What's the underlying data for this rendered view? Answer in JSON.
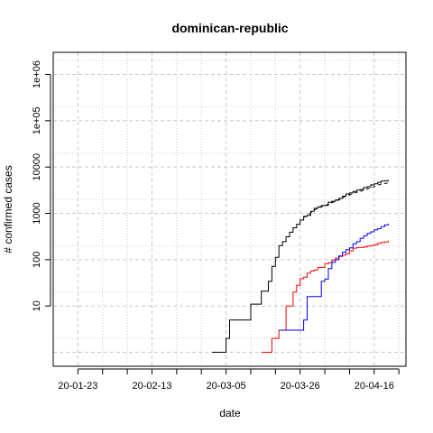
{
  "chart_data": {
    "type": "line",
    "title": "dominican-republic",
    "xlabel": "date",
    "ylabel": "# confirmed cases",
    "x_scale": "date",
    "y_scale": "log",
    "grid": true,
    "ylim": [
      0.5,
      3000000
    ],
    "xlim": [
      "2020-01-16",
      "2020-04-25"
    ],
    "x_tick_labels": [
      "20-01-23",
      "20-02-13",
      "20-03-05",
      "20-03-26",
      "20-04-16"
    ],
    "x_tick_dates": [
      "2020-01-23",
      "2020-02-13",
      "2020-03-05",
      "2020-03-26",
      "2020-04-16"
    ],
    "y_tick_labels": [
      "10",
      "100",
      "1000",
      "10000",
      "1e+05",
      "1e+06"
    ],
    "y_tick_values": [
      10,
      100,
      1000,
      10000,
      100000,
      1000000
    ],
    "series": [
      {
        "color": "#000000",
        "style": "solid",
        "step": true,
        "x": [
          "2020-03-01",
          "2020-03-04",
          "2020-03-05",
          "2020-03-06",
          "2020-03-11",
          "2020-03-12",
          "2020-03-13",
          "2020-03-14",
          "2020-03-15",
          "2020-03-16",
          "2020-03-17",
          "2020-03-18",
          "2020-03-19",
          "2020-03-20",
          "2020-03-21",
          "2020-03-22",
          "2020-03-23",
          "2020-03-24",
          "2020-03-25",
          "2020-03-26",
          "2020-03-27",
          "2020-03-28",
          "2020-03-29",
          "2020-03-30",
          "2020-03-31",
          "2020-04-01",
          "2020-04-02",
          "2020-04-03",
          "2020-04-04",
          "2020-04-05",
          "2020-04-06",
          "2020-04-07",
          "2020-04-08",
          "2020-04-09",
          "2020-04-10",
          "2020-04-11",
          "2020-04-12",
          "2020-04-13",
          "2020-04-14",
          "2020-04-15",
          "2020-04-16",
          "2020-04-17",
          "2020-04-18",
          "2020-04-19",
          "2020-04-20"
        ],
        "y": [
          1,
          1,
          2,
          5,
          5,
          11,
          11,
          11,
          21,
          21,
          34,
          72,
          112,
          200,
          245,
          312,
          392,
          488,
          581,
          719,
          859,
          901,
          1109,
          1284,
          1380,
          1488,
          1488,
          1745,
          1828,
          1956,
          2111,
          2349,
          2620,
          2759,
          2967,
          3167,
          3286,
          3614,
          3755,
          4126,
          4335,
          4680,
          4964,
          5044,
          5300
        ]
      },
      {
        "color": "#000000",
        "style": "dashed",
        "step": false,
        "x": [
          "2020-03-27",
          "2020-03-28",
          "2020-03-29",
          "2020-03-30",
          "2020-03-31",
          "2020-04-01",
          "2020-04-02",
          "2020-04-03",
          "2020-04-04",
          "2020-04-05",
          "2020-04-06",
          "2020-04-07",
          "2020-04-08",
          "2020-04-09",
          "2020-04-10",
          "2020-04-11",
          "2020-04-12",
          "2020-04-13",
          "2020-04-14",
          "2020-04-15",
          "2020-04-16",
          "2020-04-17",
          "2020-04-18",
          "2020-04-19",
          "2020-04-20"
        ],
        "y": [
          820,
          880,
          1020,
          1180,
          1280,
          1380,
          1420,
          1600,
          1700,
          1800,
          1950,
          2150,
          2380,
          2500,
          2700,
          2850,
          2950,
          3200,
          3350,
          3600,
          3800,
          4050,
          4300,
          4400,
          4550
        ]
      },
      {
        "color": "#ff0000",
        "style": "solid",
        "step": true,
        "x": [
          "2020-03-15",
          "2020-03-16",
          "2020-03-18",
          "2020-03-20",
          "2020-03-22",
          "2020-03-23",
          "2020-03-24",
          "2020-03-25",
          "2020-03-26",
          "2020-03-27",
          "2020-03-28",
          "2020-03-29",
          "2020-03-30",
          "2020-03-31",
          "2020-04-01",
          "2020-04-02",
          "2020-04-03",
          "2020-04-04",
          "2020-04-05",
          "2020-04-06",
          "2020-04-07",
          "2020-04-08",
          "2020-04-09",
          "2020-04-10",
          "2020-04-11",
          "2020-04-12",
          "2020-04-13",
          "2020-04-14",
          "2020-04-15",
          "2020-04-16",
          "2020-04-17",
          "2020-04-18",
          "2020-04-19",
          "2020-04-20"
        ],
        "y": [
          1,
          1,
          2,
          3,
          10,
          10,
          20,
          28,
          39,
          42,
          51,
          57,
          60,
          68,
          68,
          82,
          86,
          98,
          108,
          118,
          126,
          135,
          155,
          177,
          183,
          183,
          189,
          196,
          200,
          209,
          226,
          235,
          241,
          260
        ]
      },
      {
        "color": "#0000ff",
        "style": "solid",
        "step": true,
        "x": [
          "2020-03-20",
          "2020-03-21",
          "2020-03-22",
          "2020-03-23",
          "2020-03-24",
          "2020-03-25",
          "2020-03-26",
          "2020-03-27",
          "2020-03-28",
          "2020-03-29",
          "2020-03-30",
          "2020-03-31",
          "2020-04-01",
          "2020-04-02",
          "2020-04-03",
          "2020-04-04",
          "2020-04-05",
          "2020-04-06",
          "2020-04-07",
          "2020-04-08",
          "2020-04-09",
          "2020-04-10",
          "2020-04-11",
          "2020-04-12",
          "2020-04-13",
          "2020-04-14",
          "2020-04-15",
          "2020-04-16",
          "2020-04-17",
          "2020-04-18",
          "2020-04-19",
          "2020-04-20"
        ],
        "y": [
          3,
          3,
          3,
          3,
          3,
          3,
          3,
          5,
          16,
          16,
          16,
          16,
          34,
          38,
          64,
          88,
          100,
          120,
          145,
          165,
          180,
          220,
          245,
          290,
          330,
          370,
          400,
          440,
          470,
          520,
          560,
          600
        ]
      }
    ]
  }
}
